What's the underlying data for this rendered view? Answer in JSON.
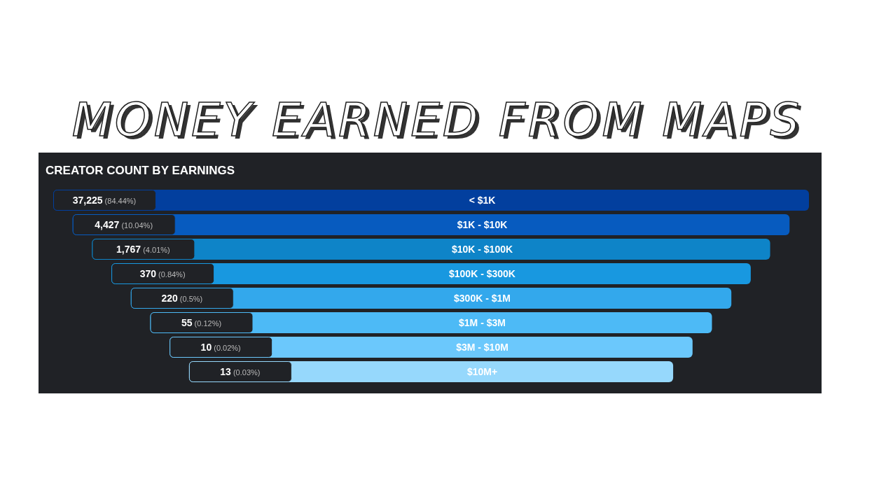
{
  "chart_data": {
    "type": "other",
    "title": "MONEY EARNED FROM MAPS",
    "subtitle": "CREATOR COUNT BY EARNINGS",
    "categories": [
      "< $1K",
      "$1K - $10K",
      "$10K - $100K",
      "$100K - $300K",
      "$300K - $1M",
      "$1M - $3M",
      "$3M - $10M",
      "$10M+"
    ],
    "values": [
      37225,
      4427,
      1767,
      370,
      220,
      55,
      10,
      13
    ],
    "value_labels": [
      "37,225 (84.44%)",
      "4,427 (10.04%)",
      "1,767 (4.01%)",
      "370 (0.84%)",
      "220 (0.5%)",
      "55 (0.12%)",
      "10 (0.02%)",
      "13 (0.03%)"
    ],
    "colors": [
      "#023f9e",
      "#075bbf",
      "#0e84c8",
      "#1898e0",
      "#33a8ec",
      "#4dbaf6",
      "#6bc8fc",
      "#96d8fc"
    ]
  }
}
